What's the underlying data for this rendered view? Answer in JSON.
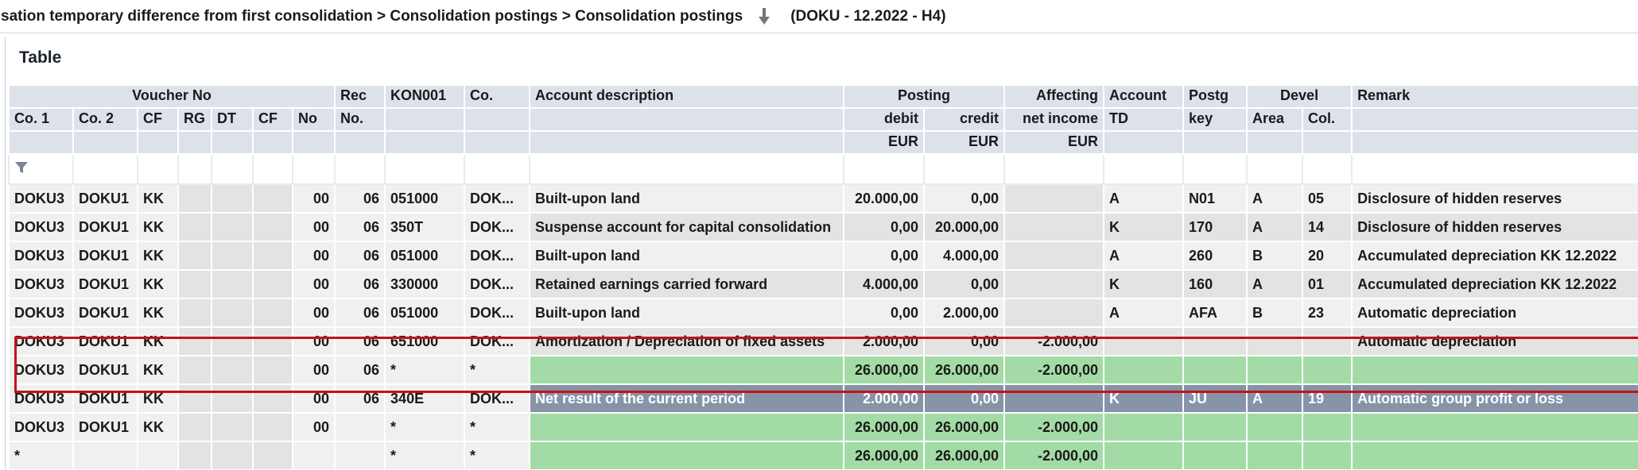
{
  "breadcrumb": {
    "path": "sation temporary difference from first consolidation > Consolidation postings > Consolidation postings",
    "context": "(DOKU - 12.2022 - H4)"
  },
  "panel": {
    "title": "Table"
  },
  "header": {
    "top": {
      "voucher_no": "Voucher No",
      "rec": "Rec",
      "kon001": "KON001",
      "co": "Co.",
      "account_description": "Account description",
      "posting": "Posting",
      "affecting": "Affecting",
      "account": "Account",
      "postg": "Postg",
      "devel": "Devel",
      "remark": "Remark"
    },
    "mid": {
      "co1": "Co. 1",
      "co2": "Co. 2",
      "cf1": "CF",
      "rg": "RG",
      "dt": "DT",
      "cf2": "CF",
      "no": "No",
      "rec_no": "No.",
      "debit": "debit",
      "credit": "credit",
      "net_income": "net income",
      "td": "TD",
      "key": "key",
      "area": "Area",
      "col": "Col."
    },
    "bottom": {
      "eur_debit": "EUR",
      "eur_credit": "EUR",
      "eur_net": "EUR"
    }
  },
  "rows": [
    {
      "co1": "DOKU3",
      "co2": "DOKU1",
      "cf": "KK",
      "rg": "",
      "dt": "",
      "cf2": "",
      "no": "00",
      "rec": "06",
      "kon": "051000",
      "co": "DOK...",
      "desc": "Built-upon land",
      "debit": "20.000,00",
      "credit": "0,00",
      "net": "",
      "td": "A",
      "key": "N01",
      "area": "A",
      "col": "05",
      "remark": "Disclosure of hidden reserves"
    },
    {
      "co1": "DOKU3",
      "co2": "DOKU1",
      "cf": "KK",
      "rg": "",
      "dt": "",
      "cf2": "",
      "no": "00",
      "rec": "06",
      "kon": "350T",
      "co": "DOK...",
      "desc": "Suspense account for capital consolidation",
      "debit": "0,00",
      "credit": "20.000,00",
      "net": "",
      "td": "K",
      "key": "170",
      "area": "A",
      "col": "14",
      "remark": "Disclosure of hidden reserves"
    },
    {
      "co1": "DOKU3",
      "co2": "DOKU1",
      "cf": "KK",
      "rg": "",
      "dt": "",
      "cf2": "",
      "no": "00",
      "rec": "06",
      "kon": "051000",
      "co": "DOK...",
      "desc": "Built-upon land",
      "debit": "0,00",
      "credit": "4.000,00",
      "net": "",
      "td": "A",
      "key": "260",
      "area": "B",
      "col": "20",
      "remark": "Accumulated depreciation KK 12.2022"
    },
    {
      "co1": "DOKU3",
      "co2": "DOKU1",
      "cf": "KK",
      "rg": "",
      "dt": "",
      "cf2": "",
      "no": "00",
      "rec": "06",
      "kon": "330000",
      "co": "DOK...",
      "desc": "Retained earnings carried forward",
      "debit": "4.000,00",
      "credit": "0,00",
      "net": "",
      "td": "K",
      "key": "160",
      "area": "A",
      "col": "01",
      "remark": "Accumulated depreciation KK 12.2022"
    },
    {
      "co1": "DOKU3",
      "co2": "DOKU1",
      "cf": "KK",
      "rg": "",
      "dt": "",
      "cf2": "",
      "no": "00",
      "rec": "06",
      "kon": "051000",
      "co": "DOK...",
      "desc": "Built-upon land",
      "debit": "0,00",
      "credit": "2.000,00",
      "net": "",
      "td": "A",
      "key": "AFA",
      "area": "B",
      "col": "23",
      "remark": "Automatic depreciation"
    },
    {
      "co1": "DOKU3",
      "co2": "DOKU1",
      "cf": "KK",
      "rg": "",
      "dt": "",
      "cf2": "",
      "no": "00",
      "rec": "06",
      "kon": "651000",
      "co": "DOK...",
      "desc": "Amortization / Depreciation of fixed assets",
      "debit": "2.000,00",
      "credit": "0,00",
      "net": "-2.000,00",
      "td": "",
      "key": "",
      "area": "",
      "col": "",
      "remark": "Automatic depreciation"
    },
    {
      "co1": "DOKU3",
      "co2": "DOKU1",
      "cf": "KK",
      "rg": "",
      "dt": "",
      "cf2": "",
      "no": "00",
      "rec": "06",
      "kon": "*",
      "co": "*",
      "desc": "",
      "debit": "26.000,00",
      "credit": "26.000,00",
      "net": "-2.000,00",
      "td": "",
      "key": "",
      "area": "",
      "col": "",
      "remark": ""
    },
    {
      "co1": "DOKU3",
      "co2": "DOKU1",
      "cf": "KK",
      "rg": "",
      "dt": "",
      "cf2": "",
      "no": "00",
      "rec": "06",
      "kon": "340E",
      "co": "DOK...",
      "desc": "Net result of the current period",
      "debit": "2.000,00",
      "credit": "0,00",
      "net": "",
      "td": "K",
      "key": "JU",
      "area": "A",
      "col": "19",
      "remark": "Automatic group profit or loss"
    },
    {
      "co1": "DOKU3",
      "co2": "DOKU1",
      "cf": "KK",
      "rg": "",
      "dt": "",
      "cf2": "",
      "no": "00",
      "rec": "",
      "kon": "*",
      "co": "*",
      "desc": "",
      "debit": "26.000,00",
      "credit": "26.000,00",
      "net": "-2.000,00",
      "td": "",
      "key": "",
      "area": "",
      "col": "",
      "remark": ""
    },
    {
      "co1": "*",
      "co2": "",
      "cf": "",
      "rg": "",
      "dt": "",
      "cf2": "",
      "no": "",
      "rec": "",
      "kon": "*",
      "co": "*",
      "desc": "",
      "debit": "26.000,00",
      "credit": "26.000,00",
      "net": "-2.000,00",
      "td": "",
      "key": "",
      "area": "",
      "col": "",
      "remark": ""
    }
  ],
  "colors": {
    "header_bg": "#dde1ea",
    "subtotal_green": "#a3dba6",
    "selected_row": "#8794a8",
    "highlight_border": "#c4121a"
  },
  "icons": {
    "download": "arrow-down-icon",
    "filter": "filter-icon"
  }
}
